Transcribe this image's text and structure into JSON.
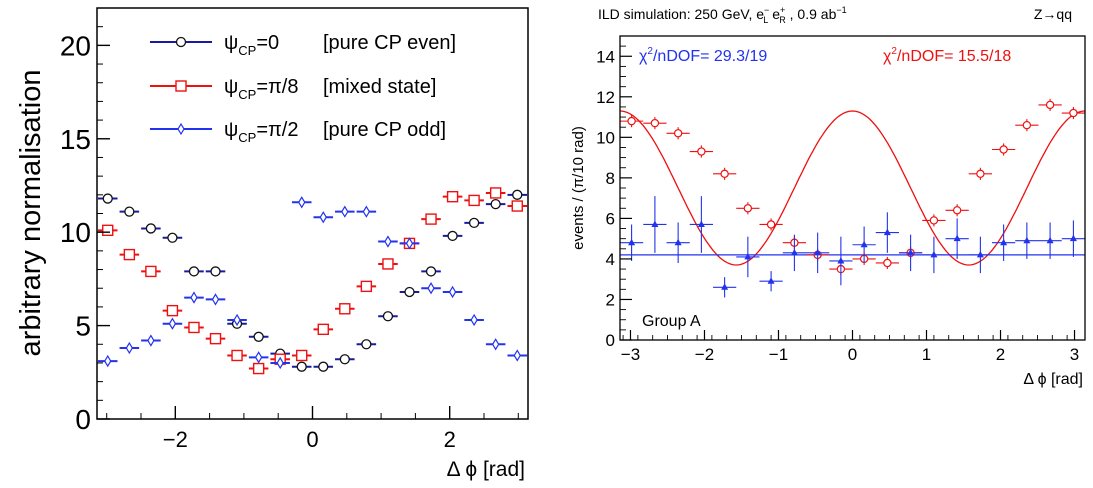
{
  "chart_data": [
    {
      "type": "scatter",
      "ylabel": "arbitrary normalisation",
      "xlabel": "Δ ϕ [rad]",
      "xlim": [
        -3.1416,
        3.1416
      ],
      "ylim": [
        0,
        22
      ],
      "xticks": [
        -2,
        0,
        2
      ],
      "yticks": [
        0,
        5,
        10,
        15,
        20
      ],
      "legend_position": "top",
      "legend": [
        {
          "label": "ψCP=0",
          "label_main": "ψ",
          "label_sub": "CP",
          "label_rest": "=0",
          "note": "[pure CP even]",
          "color": "#1a1aa0",
          "marker": "circle"
        },
        {
          "label": "ψCP=π/8",
          "label_main": "ψ",
          "label_sub": "CP",
          "label_rest": "=π/8",
          "note": "[mixed state]",
          "color": "#ee1111",
          "marker": "square"
        },
        {
          "label": "ψCP=π/2",
          "label_main": "ψ",
          "label_sub": "CP",
          "label_rest": "=π/2",
          "note": "[pure CP odd]",
          "color": "#2233ee",
          "marker": "diamond"
        }
      ],
      "series": [
        {
          "name": "ψCP=0 [pure CP even]",
          "color": "#1a1aa0",
          "marker": "circle",
          "x": [
            -2.985,
            -2.67,
            -2.356,
            -2.042,
            -1.728,
            -1.414,
            -1.1,
            -0.785,
            -0.471,
            -0.157,
            0.157,
            0.471,
            0.785,
            1.1,
            1.414,
            1.728,
            2.042,
            2.356,
            2.67,
            2.985
          ],
          "y": [
            11.8,
            11.1,
            10.2,
            9.7,
            7.9,
            7.9,
            5.1,
            4.4,
            3.5,
            2.8,
            2.8,
            3.2,
            4.0,
            5.5,
            6.8,
            7.9,
            9.8,
            10.5,
            11.5,
            12.0
          ]
        },
        {
          "name": "ψCP=π/8 [mixed state]",
          "color": "#ee1111",
          "marker": "square",
          "x": [
            -2.985,
            -2.67,
            -2.356,
            -2.042,
            -1.728,
            -1.414,
            -1.1,
            -0.785,
            -0.471,
            -0.157,
            0.157,
            0.471,
            0.785,
            1.1,
            1.414,
            1.728,
            2.042,
            2.356,
            2.67,
            2.985
          ],
          "y": [
            10.1,
            8.8,
            7.9,
            5.8,
            4.9,
            4.3,
            3.4,
            2.7,
            3.2,
            3.4,
            4.8,
            5.9,
            7.1,
            8.3,
            9.4,
            10.7,
            11.9,
            11.7,
            12.1,
            11.4
          ]
        },
        {
          "name": "ψCP=π/2 [pure CP odd]",
          "color": "#2233ee",
          "marker": "diamond",
          "x": [
            -2.985,
            -2.67,
            -2.356,
            -2.042,
            -1.728,
            -1.414,
            -1.1,
            -0.785,
            -0.471,
            -0.157,
            0.157,
            0.471,
            0.785,
            1.1,
            1.414,
            1.728,
            2.042,
            2.356,
            2.67,
            2.985
          ],
          "y": [
            3.1,
            3.8,
            4.2,
            5.1,
            6.5,
            6.4,
            5.3,
            3.3,
            3.0,
            11.6,
            10.8,
            11.1,
            11.1,
            9.5,
            9.4,
            7.0,
            6.8,
            5.3,
            4.0,
            3.4
          ]
        }
      ]
    },
    {
      "type": "scatter",
      "title": "ILD simulation: 250 GeV, e⁻L e⁺R , 0.9 ab⁻¹",
      "title_parts": {
        "pre": "ILD simulation: 250 GeV, e",
        "sup1": "−",
        "sub1": "L",
        "mid": " e",
        "sup2": "+",
        "sub2": "R",
        "post": " , 0.9 ab",
        "sup3": "−1"
      },
      "title_right": "Z→qq",
      "ylabel": "events / (π/10 rad)",
      "xlabel": "Δ ϕ [rad]",
      "xlim": [
        -3.1416,
        3.1416
      ],
      "ylim": [
        0,
        15
      ],
      "xticks": [
        -3,
        -2,
        -1,
        0,
        1,
        2,
        3
      ],
      "yticks": [
        0,
        2,
        4,
        6,
        8,
        10,
        12,
        14
      ],
      "annotations": {
        "chi_blue": "χ²/nDOF= 29.3/19",
        "chi_blue_parts": {
          "a": "χ",
          "sup": "2",
          "b": "/nDOF= 29.3/19"
        },
        "chi_red": "χ²/nDOF= 15.5/18",
        "chi_red_parts": {
          "a": "χ",
          "sup": "2",
          "b": "/nDOF= 15.5/18"
        },
        "group": "Group A"
      },
      "series": [
        {
          "name": "red",
          "color": "#ee1111",
          "marker": "open-circle",
          "x": [
            -2.985,
            -2.67,
            -2.356,
            -2.042,
            -1.728,
            -1.414,
            -1.1,
            -0.785,
            -0.471,
            -0.157,
            0.157,
            0.471,
            0.785,
            1.1,
            1.414,
            1.728,
            2.042,
            2.356,
            2.67,
            2.985
          ],
          "y": [
            10.8,
            10.7,
            10.2,
            9.3,
            8.2,
            6.5,
            5.7,
            4.8,
            4.2,
            3.5,
            4.0,
            3.8,
            4.3,
            5.9,
            6.4,
            8.2,
            9.4,
            10.6,
            11.6,
            11.2
          ],
          "fit": {
            "type": "cos2",
            "mean": 7.5,
            "amplitude": 3.8,
            "phase": 0.0
          }
        },
        {
          "name": "blue",
          "color": "#2233ee",
          "marker": "filled-triangle",
          "x": [
            -2.985,
            -2.67,
            -2.356,
            -2.042,
            -1.728,
            -1.414,
            -1.1,
            -0.785,
            -0.471,
            -0.157,
            0.157,
            0.471,
            0.785,
            1.1,
            1.414,
            1.728,
            2.042,
            2.356,
            2.67,
            2.985
          ],
          "y": [
            4.8,
            5.7,
            4.8,
            5.7,
            2.6,
            4.1,
            2.9,
            4.3,
            4.3,
            3.9,
            4.7,
            5.3,
            4.3,
            4.2,
            5.0,
            4.2,
            4.8,
            4.9,
            4.9,
            5.0
          ],
          "yerr": [
            0.9,
            1.4,
            1.0,
            1.4,
            0.5,
            1.0,
            0.5,
            0.9,
            1.0,
            1.2,
            0.9,
            1.0,
            0.9,
            0.9,
            1.0,
            0.9,
            0.9,
            0.9,
            0.9,
            0.9
          ],
          "fit": {
            "type": "flat",
            "value": 4.2
          }
        }
      ]
    }
  ]
}
